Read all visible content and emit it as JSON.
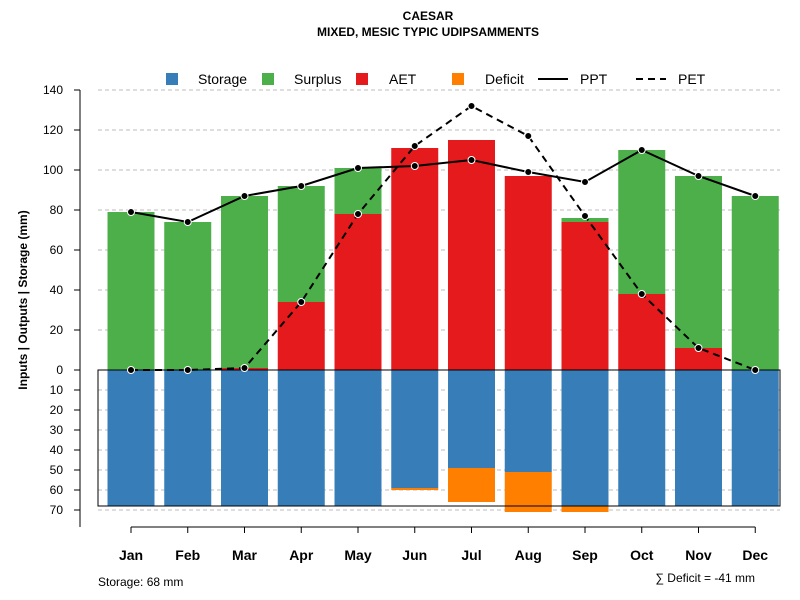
{
  "chart_data": {
    "type": "bar",
    "title": "CAESAR",
    "subtitle": "MIXED, MESIC TYPIC UDIPSAMMENTS",
    "ylabel": "Inputs | Outputs | Storage    (mm)",
    "categories": [
      "Jan",
      "Feb",
      "Mar",
      "Apr",
      "May",
      "Jun",
      "Jul",
      "Aug",
      "Sep",
      "Oct",
      "Nov",
      "Dec"
    ],
    "ylim_top": [
      0,
      140
    ],
    "ylim_bottom": [
      0,
      70
    ],
    "yticks_top": [
      0,
      20,
      40,
      60,
      80,
      100,
      120,
      140
    ],
    "yticks_bottom": [
      0,
      10,
      20,
      30,
      40,
      50,
      60,
      70
    ],
    "series": [
      {
        "name": "Storage",
        "color": "#377EB8",
        "values": [
          68,
          68,
          68,
          68,
          68,
          59,
          49,
          51,
          68,
          68,
          68,
          68
        ]
      },
      {
        "name": "Surplus",
        "color": "#4DAF4A",
        "values": [
          79,
          74,
          86,
          58,
          23,
          0,
          0,
          0,
          2,
          72,
          86,
          87
        ]
      },
      {
        "name": "AET",
        "color": "#E41A1C",
        "values": [
          0,
          0,
          1,
          34,
          78,
          111,
          115,
          97,
          74,
          38,
          11,
          0
        ]
      },
      {
        "name": "Deficit",
        "color": "#FF7F00",
        "values": [
          0,
          0,
          0,
          0,
          0,
          1,
          17,
          20,
          3,
          0,
          0,
          0
        ]
      },
      {
        "name": "PPT",
        "style": "solid",
        "values": [
          79,
          74,
          87,
          92,
          101,
          102,
          105,
          99,
          94,
          110,
          97,
          87
        ]
      },
      {
        "name": "PET",
        "style": "dashed",
        "values": [
          0,
          0,
          1,
          34,
          78,
          112,
          132,
          117,
          77,
          38,
          11,
          0
        ]
      }
    ],
    "legend": {
      "placement": "top",
      "items": [
        "Storage",
        "Surplus",
        "AET",
        "Deficit",
        "PPT",
        "PET"
      ]
    },
    "storage_note": "Storage: 68 mm",
    "deficit_note": "∑ Deficit = -41 mm",
    "grid": true
  }
}
